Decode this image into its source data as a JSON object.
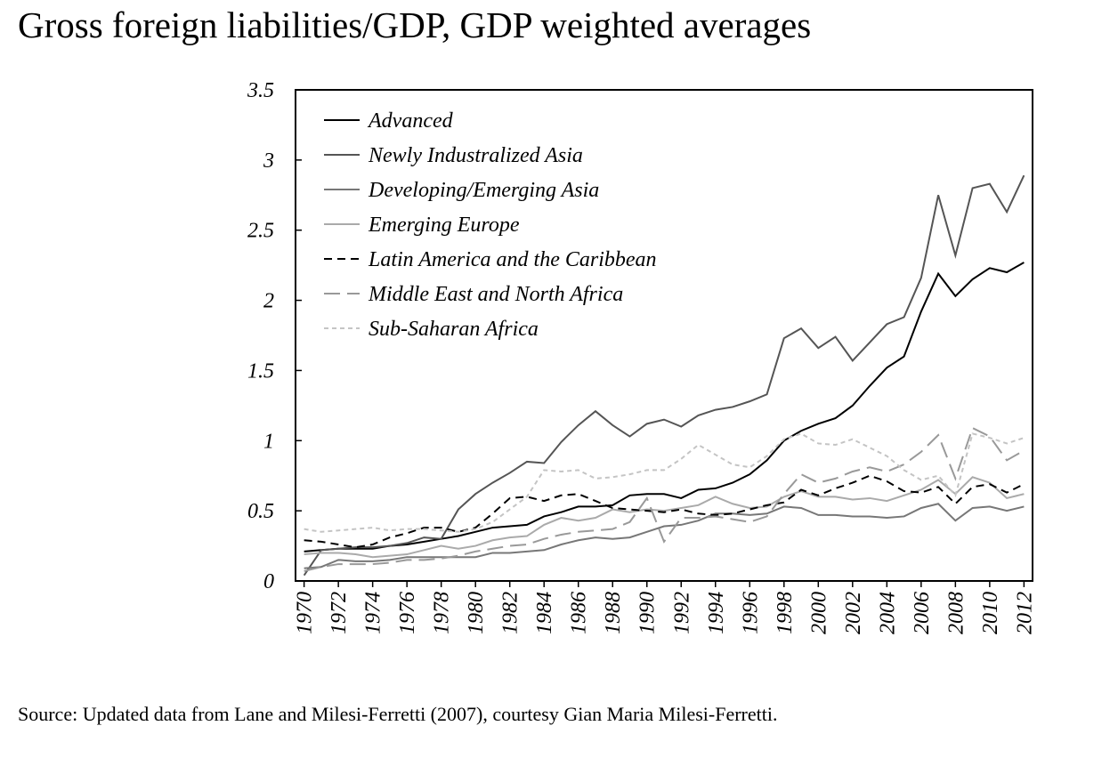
{
  "chart_data": {
    "type": "line",
    "title": "Gross foreign liabilities/GDP, GDP weighted averages",
    "source": "Source: Updated data from Lane and Milesi-Ferretti (2007), courtesy Gian Maria Milesi-Ferretti.",
    "x": [
      1970,
      1971,
      1972,
      1973,
      1974,
      1975,
      1976,
      1977,
      1978,
      1979,
      1980,
      1981,
      1982,
      1983,
      1984,
      1985,
      1986,
      1987,
      1988,
      1989,
      1990,
      1991,
      1992,
      1993,
      1994,
      1995,
      1996,
      1997,
      1998,
      1999,
      2000,
      2001,
      2002,
      2003,
      2004,
      2005,
      2006,
      2007,
      2008,
      2009,
      2010,
      2011,
      2012
    ],
    "xlim": [
      1969.5,
      2012.5
    ],
    "xticks": [
      1970,
      1972,
      1974,
      1976,
      1978,
      1980,
      1982,
      1984,
      1986,
      1988,
      1990,
      1992,
      1994,
      1996,
      1998,
      2000,
      2002,
      2004,
      2006,
      2008,
      2010,
      2012
    ],
    "ylim": [
      0,
      3.5
    ],
    "yticks": [
      0,
      0.5,
      1,
      1.5,
      2,
      2.5,
      3,
      3.5
    ],
    "legend": "upper-left",
    "series": [
      {
        "name": "Advanced",
        "color": "#000000",
        "style": "solid",
        "values": [
          0.21,
          0.22,
          0.23,
          0.23,
          0.23,
          0.25,
          0.26,
          0.28,
          0.3,
          0.32,
          0.35,
          0.38,
          0.39,
          0.4,
          0.46,
          0.49,
          0.53,
          0.53,
          0.54,
          0.61,
          0.62,
          0.62,
          0.59,
          0.65,
          0.66,
          0.7,
          0.76,
          0.86,
          1.0,
          1.07,
          1.12,
          1.16,
          1.25,
          1.39,
          1.52,
          1.6,
          1.92,
          2.19,
          2.03,
          2.15,
          2.23,
          2.2,
          2.27
        ]
      },
      {
        "name": "Newly Industralized Asia",
        "color": "#555555",
        "style": "solid",
        "values": [
          0.04,
          0.22,
          0.23,
          0.24,
          0.24,
          0.25,
          0.27,
          0.31,
          0.3,
          0.51,
          0.62,
          0.7,
          0.77,
          0.85,
          0.84,
          0.99,
          1.11,
          1.21,
          1.11,
          1.03,
          1.12,
          1.15,
          1.1,
          1.18,
          1.22,
          1.24,
          1.28,
          1.33,
          1.73,
          1.8,
          1.66,
          1.74,
          1.57,
          1.7,
          1.83,
          1.88,
          2.16,
          2.75,
          2.32,
          2.8,
          2.83,
          2.63,
          2.89
        ]
      },
      {
        "name": "Developing/Emerging Asia",
        "color": "#777777",
        "style": "solid",
        "values": [
          0.09,
          0.1,
          0.15,
          0.14,
          0.14,
          0.15,
          0.17,
          0.17,
          0.17,
          0.17,
          0.17,
          0.2,
          0.2,
          0.21,
          0.22,
          0.26,
          0.29,
          0.31,
          0.3,
          0.31,
          0.35,
          0.39,
          0.4,
          0.43,
          0.48,
          0.48,
          0.47,
          0.48,
          0.53,
          0.52,
          0.47,
          0.47,
          0.46,
          0.46,
          0.45,
          0.46,
          0.52,
          0.55,
          0.43,
          0.52,
          0.53,
          0.5,
          0.53
        ]
      },
      {
        "name": "Emerging Europe",
        "color": "#aaaaaa",
        "style": "solid",
        "values": [
          0.19,
          0.2,
          0.2,
          0.19,
          0.17,
          0.18,
          0.19,
          0.22,
          0.25,
          0.23,
          0.25,
          0.29,
          0.31,
          0.32,
          0.4,
          0.45,
          0.43,
          0.45,
          0.51,
          0.49,
          0.51,
          0.5,
          0.52,
          0.54,
          0.6,
          0.55,
          0.52,
          0.53,
          0.6,
          0.64,
          0.6,
          0.6,
          0.58,
          0.59,
          0.57,
          0.61,
          0.65,
          0.72,
          0.62,
          0.74,
          0.7,
          0.59,
          0.62
        ]
      },
      {
        "name": "Latin America and the Caribbean",
        "color": "#000000",
        "style": "dashed",
        "values": [
          0.29,
          0.28,
          0.26,
          0.24,
          0.26,
          0.31,
          0.34,
          0.38,
          0.38,
          0.35,
          0.38,
          0.48,
          0.59,
          0.6,
          0.57,
          0.61,
          0.62,
          0.57,
          0.52,
          0.51,
          0.5,
          0.49,
          0.51,
          0.48,
          0.47,
          0.48,
          0.51,
          0.54,
          0.56,
          0.65,
          0.61,
          0.66,
          0.7,
          0.75,
          0.71,
          0.64,
          0.63,
          0.67,
          0.55,
          0.67,
          0.69,
          0.63,
          0.69
        ]
      },
      {
        "name": "Middle East and North Africa",
        "color": "#999999",
        "style": "long-dashed",
        "values": [
          0.07,
          0.1,
          0.12,
          0.12,
          0.12,
          0.13,
          0.15,
          0.15,
          0.16,
          0.18,
          0.21,
          0.23,
          0.25,
          0.26,
          0.3,
          0.33,
          0.35,
          0.36,
          0.37,
          0.42,
          0.59,
          0.28,
          0.45,
          0.45,
          0.46,
          0.44,
          0.42,
          0.46,
          0.62,
          0.76,
          0.7,
          0.73,
          0.78,
          0.81,
          0.78,
          0.83,
          0.92,
          1.04,
          0.73,
          1.09,
          1.03,
          0.86,
          0.93
        ]
      },
      {
        "name": "Sub-Saharan Africa",
        "color": "#c4c4c4",
        "style": "short-dashed",
        "values": [
          0.37,
          0.35,
          0.36,
          0.37,
          0.38,
          0.36,
          0.37,
          0.37,
          0.36,
          0.35,
          0.37,
          0.42,
          0.51,
          0.6,
          0.79,
          0.78,
          0.79,
          0.73,
          0.74,
          0.76,
          0.79,
          0.79,
          0.87,
          0.97,
          0.9,
          0.83,
          0.81,
          0.89,
          1.01,
          1.05,
          0.98,
          0.97,
          1.01,
          0.95,
          0.89,
          0.79,
          0.72,
          0.75,
          0.61,
          1.05,
          1.02,
          0.98,
          1.02
        ]
      }
    ]
  }
}
